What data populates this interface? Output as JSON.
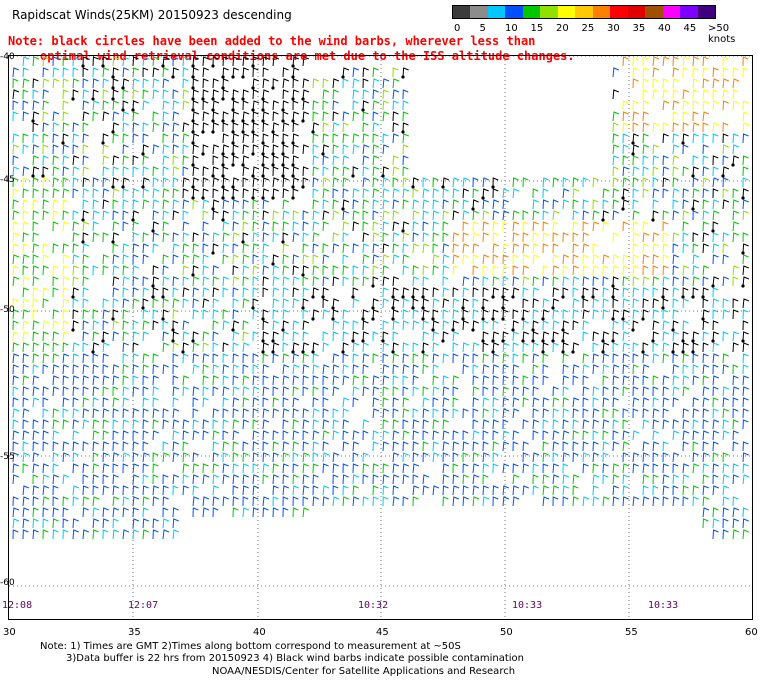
{
  "title": "Rapidscat Winds(25KM) 20150923 descending",
  "note": {
    "line1": "Note: black circles have been added to the wind barbs, wherever less than",
    "line2": "optimal wind retrieval conditions are met due to the ISS altitude changes."
  },
  "legend": {
    "unit_label": ">50 knots",
    "ticks": [
      "0",
      "5",
      "10",
      "15",
      "20",
      "25",
      "30",
      "35",
      "40",
      "45"
    ],
    "colors": [
      "#3c3c3c",
      "#8c8c8c",
      "#00c8ff",
      "#0050ff",
      "#00c800",
      "#90e000",
      "#ffff00",
      "#ffc800",
      "#ff8000",
      "#ff0000",
      "#e00000",
      "#a05000",
      "#ff00ff",
      "#8000ff",
      "#400080"
    ]
  },
  "map": {
    "lat_labels": [
      "-40",
      "-45",
      "-50",
      "-55",
      "-60"
    ],
    "lon_labels": [
      "30",
      "35",
      "40",
      "45",
      "50",
      "55",
      "60"
    ],
    "time_labels": [
      "12:08",
      "12:07",
      "10:32",
      "10:33",
      "10:33"
    ]
  },
  "footer": {
    "line1": "Note: 1) Times are GMT 2)Times along bottom correspond to measurement at ~50S",
    "line2": "3)Data buffer is 22 hrs from 20150923 4) Black wind barbs indicate possible contamination",
    "line3": "NOAA/NESDIS/Center for Satellite Applications and Research"
  }
}
